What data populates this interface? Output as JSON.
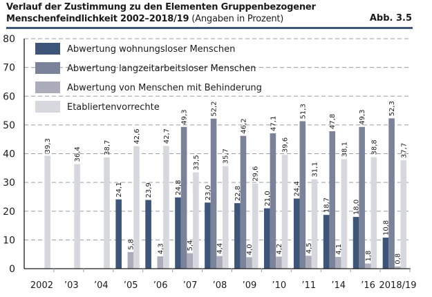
{
  "header": {
    "title_line1": "Verlauf der Zustimmung zu den Elementen Gruppenbezogener",
    "title_line2_bold": "Menschenfeindlichkeit 2002–2018/19",
    "title_line2_normal": " (Angaben in Prozent)",
    "figure_label": "Abb. 3.5",
    "accent_color": "#3d5578"
  },
  "chart_data": {
    "type": "bar",
    "title": "Verlauf der Zustimmung zu den Elementen Gruppenbezogener Menschenfeindlichkeit 2002–2018/19 (Angaben in Prozent)",
    "xlabel": "",
    "ylabel": "",
    "ylim": [
      0,
      80
    ],
    "yticks": [
      0,
      10,
      20,
      30,
      40,
      50,
      60,
      70,
      80
    ],
    "grid": true,
    "legend_position": "top-left",
    "categories": [
      "2002",
      "’03",
      "’04",
      "’05",
      "’06",
      "’07",
      "’08",
      "’09",
      "’10",
      "’11",
      "’14",
      "’16",
      "2018/19"
    ],
    "series": [
      {
        "name": "Abwertung wohnungsloser Menschen",
        "color": "#3d5578",
        "values": [
          null,
          null,
          null,
          24.1,
          23.9,
          24.8,
          23.0,
          22.8,
          21.0,
          24.4,
          18.7,
          18.0,
          10.8
        ],
        "labels": [
          null,
          null,
          null,
          "24,1",
          "23,9",
          "24,8",
          "23,0",
          "22,8",
          "21,0",
          "24,4",
          "18,7",
          "18,0",
          "10,8"
        ]
      },
      {
        "name": "Abwertung langzeitarbeitsloser Menschen",
        "color": "#7a8399",
        "values": [
          null,
          null,
          null,
          null,
          null,
          49.3,
          52.2,
          46.2,
          47.1,
          51.3,
          47.8,
          49.3,
          52.3
        ],
        "labels": [
          null,
          null,
          null,
          null,
          null,
          "49,3",
          "52,2",
          "46,2",
          "47,1",
          "51,3",
          "47,8",
          "49,3",
          "52,3"
        ]
      },
      {
        "name": "Abwertung von Menschen mit Behinderung",
        "color": "#abaeba",
        "values": [
          null,
          null,
          null,
          5.8,
          4.3,
          5.4,
          4.4,
          4.0,
          4.2,
          4.5,
          4.1,
          1.8,
          0.8
        ],
        "labels": [
          null,
          null,
          null,
          "5,8",
          "4,3",
          "5,4",
          "4,4",
          "4,0",
          "4,2",
          "4,5",
          "4,1",
          "1,8",
          "0,8"
        ]
      },
      {
        "name": "Etabliertenvorrechte",
        "color": "#d7d8dd",
        "values": [
          39.3,
          36.4,
          38.7,
          42.6,
          42.7,
          33.5,
          35.7,
          29.6,
          39.6,
          31.1,
          38.1,
          38.8,
          37.7
        ],
        "labels": [
          "39,3",
          "36,4",
          "38,7",
          "42,6",
          "42,7",
          "33,5",
          "35,7",
          "29,6",
          "39,6",
          "31,1",
          "38,1",
          "38,8",
          "37,7"
        ]
      }
    ]
  }
}
